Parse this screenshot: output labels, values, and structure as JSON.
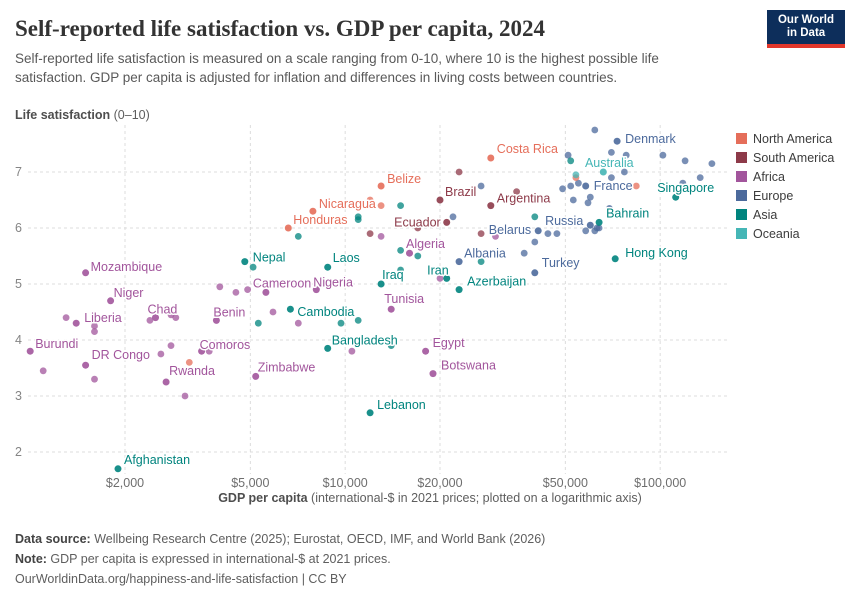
{
  "header": {
    "title": "Self-reported life satisfaction vs. GDP per capita, 2024",
    "subtitle": "Self-reported life satisfaction is measured on a scale ranging from 0-10, where 10 is the highest possible life satisfaction. GDP per capita is adjusted for inflation and differences in living costs between countries.",
    "logo": {
      "line1": "Our World",
      "line2": "in Data",
      "bg": "#0d2e5b",
      "accent": "#e2372b"
    }
  },
  "chart_data": {
    "type": "scatter",
    "title": "Self-reported life satisfaction vs. GDP per capita, 2024",
    "x_scale": "log",
    "y_axis": {
      "label_main": "Life satisfaction",
      "label_range": "(0–10)",
      "ticks": [
        2,
        3,
        4,
        5,
        6,
        7
      ],
      "min": 1.5,
      "max": 7.9
    },
    "x_axis": {
      "label_bold": "GDP per capita",
      "label_rest": " (international-$ in 2021 prices; plotted on a logarithmic axis)",
      "ticks": [
        {
          "value": 2000,
          "label": "$2,000"
        },
        {
          "value": 5000,
          "label": "$5,000"
        },
        {
          "value": 10000,
          "label": "$10,000"
        },
        {
          "value": 20000,
          "label": "$20,000"
        },
        {
          "value": 50000,
          "label": "$50,000"
        },
        {
          "value": 100000,
          "label": "$100,000"
        }
      ]
    },
    "legend": [
      {
        "label": "North America",
        "code": "NA",
        "color": "#e56e5a"
      },
      {
        "label": "South America",
        "code": "SA",
        "color": "#8d3a49"
      },
      {
        "label": "Africa",
        "code": "AF",
        "color": "#a2559c"
      },
      {
        "label": "Europe",
        "code": "EU",
        "color": "#4c6a9c"
      },
      {
        "label": "Asia",
        "code": "AS",
        "color": "#00847e"
      },
      {
        "label": "Oceania",
        "code": "OC",
        "color": "#45b6b6"
      }
    ],
    "continent_colors": {
      "NA": "#e56e5a",
      "SA": "#8d3a49",
      "AF": "#a2559c",
      "EU": "#4c6a9c",
      "AS": "#00847e",
      "OC": "#45b6b6"
    },
    "points": [
      {
        "name": "Denmark",
        "c": "EU",
        "gdp": 73000,
        "ls": 7.55,
        "lp": [
          8,
          -2,
          "start"
        ]
      },
      {
        "name": "Australia",
        "c": "OC",
        "gdp": 66000,
        "ls": 7.0,
        "lp": [
          6,
          -9,
          "middle"
        ]
      },
      {
        "name": "France",
        "c": "EU",
        "gdp": 58000,
        "ls": 6.75,
        "lp": [
          8,
          0,
          "start"
        ]
      },
      {
        "name": "Singapore",
        "c": "AS",
        "gdp": 112000,
        "ls": 6.55,
        "lp": [
          10,
          -9,
          "middle"
        ]
      },
      {
        "name": "Bahrain",
        "c": "AS",
        "gdp": 64000,
        "ls": 6.1,
        "lp": [
          7,
          -9,
          "start"
        ]
      },
      {
        "name": "Russia",
        "c": "EU",
        "gdp": 60000,
        "ls": 6.05,
        "lp": [
          -7,
          -4,
          "end"
        ]
      },
      {
        "name": "Belarus",
        "c": "EU",
        "gdp": 41000,
        "ls": 5.95,
        "lp": [
          -7,
          -1,
          "end"
        ]
      },
      {
        "name": "Hong Kong",
        "c": "AS",
        "gdp": 72000,
        "ls": 5.45,
        "lp": [
          10,
          -6,
          "start"
        ]
      },
      {
        "name": "Turkey",
        "c": "EU",
        "gdp": 40000,
        "ls": 5.2,
        "lp": [
          7,
          -10,
          "start"
        ]
      },
      {
        "name": "Albania",
        "c": "EU",
        "gdp": 23000,
        "ls": 5.4,
        "lp": [
          5,
          -8,
          "start"
        ]
      },
      {
        "name": "Azerbaijan",
        "c": "AS",
        "gdp": 23000,
        "ls": 4.9,
        "lp": [
          8,
          -8,
          "start"
        ]
      },
      {
        "name": "Iran",
        "c": "AS",
        "gdp": 21000,
        "ls": 5.1,
        "lp": [
          2,
          -8,
          "end"
        ]
      },
      {
        "name": "Iraq",
        "c": "AS",
        "gdp": 13000,
        "ls": 5.0,
        "lp": [
          1,
          -9,
          "start"
        ]
      },
      {
        "name": "Tunisia",
        "c": "AF",
        "gdp": 14000,
        "ls": 4.55,
        "lp": [
          13,
          -10,
          "middle"
        ]
      },
      {
        "name": "Algeria",
        "c": "AF",
        "gdp": 16000,
        "ls": 5.55,
        "lp": [
          16,
          -9,
          "middle"
        ]
      },
      {
        "name": "Ecuador",
        "c": "SA",
        "gdp": 21000,
        "ls": 6.1,
        "lp": [
          -6,
          0,
          "end"
        ]
      },
      {
        "name": "Brazil",
        "c": "SA",
        "gdp": 20000,
        "ls": 6.5,
        "lp": [
          5,
          -8,
          "start"
        ]
      },
      {
        "name": "Argentina",
        "c": "SA",
        "gdp": 29000,
        "ls": 6.4,
        "lp": [
          6,
          -7,
          "start"
        ]
      },
      {
        "name": "Costa Rica",
        "c": "NA",
        "gdp": 29000,
        "ls": 7.25,
        "lp": [
          6,
          -9,
          "start"
        ]
      },
      {
        "name": "Belize",
        "c": "NA",
        "gdp": 13000,
        "ls": 6.75,
        "lp": [
          6,
          -7,
          "start"
        ]
      },
      {
        "name": "Nicaragua",
        "c": "NA",
        "gdp": 7900,
        "ls": 6.3,
        "lp": [
          6,
          -7,
          "start"
        ]
      },
      {
        "name": "Honduras",
        "c": "NA",
        "gdp": 6600,
        "ls": 6.0,
        "lp": [
          5,
          -8,
          "start"
        ]
      },
      {
        "name": "Nepal",
        "c": "AS",
        "gdp": 4800,
        "ls": 5.4,
        "lp": [
          8,
          -4,
          "start"
        ]
      },
      {
        "name": "Laos",
        "c": "AS",
        "gdp": 8800,
        "ls": 5.3,
        "lp": [
          5,
          -9,
          "start"
        ]
      },
      {
        "name": "Cameroon",
        "c": "AF",
        "gdp": 5600,
        "ls": 4.85,
        "lp": [
          -13,
          -9,
          "start"
        ]
      },
      {
        "name": "Nigeria",
        "c": "AF",
        "gdp": 8100,
        "ls": 4.9,
        "lp": [
          -3,
          -7,
          "start"
        ]
      },
      {
        "name": "Cambodia",
        "c": "AS",
        "gdp": 6700,
        "ls": 4.55,
        "lp": [
          7,
          3,
          "start"
        ]
      },
      {
        "name": "Bangladesh",
        "c": "AS",
        "gdp": 8800,
        "ls": 3.85,
        "lp": [
          4,
          -8,
          "start"
        ]
      },
      {
        "name": "Egypt",
        "c": "AF",
        "gdp": 18000,
        "ls": 3.8,
        "lp": [
          7,
          -8,
          "start"
        ]
      },
      {
        "name": "Botswana",
        "c": "AF",
        "gdp": 19000,
        "ls": 3.4,
        "lp": [
          8,
          -8,
          "start"
        ]
      },
      {
        "name": "Zimbabwe",
        "c": "AF",
        "gdp": 5200,
        "ls": 3.35,
        "lp": [
          2,
          -9,
          "start"
        ]
      },
      {
        "name": "Lebanon",
        "c": "AS",
        "gdp": 12000,
        "ls": 2.7,
        "lp": [
          7,
          -8,
          "start"
        ]
      },
      {
        "name": "Afghanistan",
        "c": "AS",
        "gdp": 1900,
        "ls": 1.7,
        "lp": [
          6,
          -9,
          "start"
        ]
      },
      {
        "name": "Burundi",
        "c": "AF",
        "gdp": 1000,
        "ls": 3.8,
        "lp": [
          5,
          -7,
          "start"
        ]
      },
      {
        "name": "DR Congo",
        "c": "AF",
        "gdp": 1500,
        "ls": 3.55,
        "lp": [
          6,
          -10,
          "start"
        ]
      },
      {
        "name": "Rwanda",
        "c": "AF",
        "gdp": 2700,
        "ls": 3.25,
        "lp": [
          3,
          -11,
          "start"
        ]
      },
      {
        "name": "Mozambique",
        "c": "AF",
        "gdp": 1500,
        "ls": 5.2,
        "lp": [
          5,
          -6,
          "start"
        ]
      },
      {
        "name": "Niger",
        "c": "AF",
        "gdp": 1800,
        "ls": 4.7,
        "lp": [
          3,
          -8,
          "start"
        ]
      },
      {
        "name": "Liberia",
        "c": "AF",
        "gdp": 1400,
        "ls": 4.3,
        "lp": [
          8,
          -5,
          "start"
        ]
      },
      {
        "name": "Chad",
        "c": "AF",
        "gdp": 2500,
        "ls": 4.4,
        "lp": [
          -8,
          -8,
          "start"
        ]
      },
      {
        "name": "Benin",
        "c": "AF",
        "gdp": 3900,
        "ls": 4.35,
        "lp": [
          -3,
          -8,
          "start"
        ]
      },
      {
        "name": "Comoros",
        "c": "AF",
        "gdp": 3500,
        "ls": 3.8,
        "lp": [
          -2,
          -6,
          "start"
        ]
      }
    ],
    "unlabeled_points": [
      {
        "c": "EU",
        "gdp": 62000,
        "ls": 7.75
      },
      {
        "c": "EU",
        "gdp": 70000,
        "ls": 7.35
      },
      {
        "c": "EU",
        "gdp": 78000,
        "ls": 7.3
      },
      {
        "c": "EU",
        "gdp": 102000,
        "ls": 7.3
      },
      {
        "c": "EU",
        "gdp": 120000,
        "ls": 7.2
      },
      {
        "c": "EU",
        "gdp": 146000,
        "ls": 7.15
      },
      {
        "c": "EU",
        "gdp": 70000,
        "ls": 6.9
      },
      {
        "c": "EU",
        "gdp": 77000,
        "ls": 7.0
      },
      {
        "c": "EU",
        "gdp": 51000,
        "ls": 7.3
      },
      {
        "c": "EU",
        "gdp": 55000,
        "ls": 6.8
      },
      {
        "c": "EU",
        "gdp": 49000,
        "ls": 6.7
      },
      {
        "c": "EU",
        "gdp": 52000,
        "ls": 6.75
      },
      {
        "c": "EU",
        "gdp": 60000,
        "ls": 6.55
      },
      {
        "c": "EU",
        "gdp": 59000,
        "ls": 6.45
      },
      {
        "c": "EU",
        "gdp": 53000,
        "ls": 6.5
      },
      {
        "c": "EU",
        "gdp": 69000,
        "ls": 6.35
      },
      {
        "c": "EU",
        "gdp": 64000,
        "ls": 6.0
      },
      {
        "c": "EU",
        "gdp": 62000,
        "ls": 5.95
      },
      {
        "c": "EU",
        "gdp": 63000,
        "ls": 6.0
      },
      {
        "c": "EU",
        "gdp": 118000,
        "ls": 6.8
      },
      {
        "c": "EU",
        "gdp": 134000,
        "ls": 6.9
      },
      {
        "c": "EU",
        "gdp": 44000,
        "ls": 5.9
      },
      {
        "c": "EU",
        "gdp": 47000,
        "ls": 5.9
      },
      {
        "c": "EU",
        "gdp": 58000,
        "ls": 5.95
      },
      {
        "c": "EU",
        "gdp": 37000,
        "ls": 5.55
      },
      {
        "c": "EU",
        "gdp": 40000,
        "ls": 5.75
      },
      {
        "c": "EU",
        "gdp": 27000,
        "ls": 6.75
      },
      {
        "c": "EU",
        "gdp": 22000,
        "ls": 6.2
      },
      {
        "c": "NA",
        "gdp": 84000,
        "ls": 6.75
      },
      {
        "c": "NA",
        "gdp": 54000,
        "ls": 6.9
      },
      {
        "c": "NA",
        "gdp": 12000,
        "ls": 6.5
      },
      {
        "c": "NA",
        "gdp": 13000,
        "ls": 6.4
      },
      {
        "c": "NA",
        "gdp": 3200,
        "ls": 3.6
      },
      {
        "c": "SA",
        "gdp": 23000,
        "ls": 7.0
      },
      {
        "c": "SA",
        "gdp": 35000,
        "ls": 6.65
      },
      {
        "c": "SA",
        "gdp": 17000,
        "ls": 6.0
      },
      {
        "c": "SA",
        "gdp": 12000,
        "ls": 5.9
      },
      {
        "c": "SA",
        "gdp": 27000,
        "ls": 5.9
      },
      {
        "c": "AS",
        "gdp": 52000,
        "ls": 7.2
      },
      {
        "c": "AS",
        "gdp": 40000,
        "ls": 6.2
      },
      {
        "c": "AS",
        "gdp": 15000,
        "ls": 6.4
      },
      {
        "c": "AS",
        "gdp": 11000,
        "ls": 6.2
      },
      {
        "c": "AS",
        "gdp": 11000,
        "ls": 6.15
      },
      {
        "c": "AS",
        "gdp": 7100,
        "ls": 5.85
      },
      {
        "c": "AS",
        "gdp": 15000,
        "ls": 5.6
      },
      {
        "c": "AS",
        "gdp": 17000,
        "ls": 5.5
      },
      {
        "c": "AS",
        "gdp": 15000,
        "ls": 5.25
      },
      {
        "c": "AS",
        "gdp": 11000,
        "ls": 4.35
      },
      {
        "c": "AS",
        "gdp": 5100,
        "ls": 5.3
      },
      {
        "c": "AS",
        "gdp": 14000,
        "ls": 3.9
      },
      {
        "c": "AS",
        "gdp": 9700,
        "ls": 4.3
      },
      {
        "c": "AS",
        "gdp": 5300,
        "ls": 4.3
      },
      {
        "c": "AS",
        "gdp": 27000,
        "ls": 5.4
      },
      {
        "c": "AF",
        "gdp": 1100,
        "ls": 3.45
      },
      {
        "c": "AF",
        "gdp": 1300,
        "ls": 4.4
      },
      {
        "c": "AF",
        "gdp": 1600,
        "ls": 4.25
      },
      {
        "c": "AF",
        "gdp": 1600,
        "ls": 4.15
      },
      {
        "c": "AF",
        "gdp": 2400,
        "ls": 4.35
      },
      {
        "c": "AF",
        "gdp": 2800,
        "ls": 4.45
      },
      {
        "c": "AF",
        "gdp": 2900,
        "ls": 4.4
      },
      {
        "c": "AF",
        "gdp": 2600,
        "ls": 3.75
      },
      {
        "c": "AF",
        "gdp": 2800,
        "ls": 3.9
      },
      {
        "c": "AF",
        "gdp": 3700,
        "ls": 3.8
      },
      {
        "c": "AF",
        "gdp": 1600,
        "ls": 3.3
      },
      {
        "c": "AF",
        "gdp": 3100,
        "ls": 3.0
      },
      {
        "c": "AF",
        "gdp": 4000,
        "ls": 4.95
      },
      {
        "c": "AF",
        "gdp": 4500,
        "ls": 4.85
      },
      {
        "c": "AF",
        "gdp": 4900,
        "ls": 4.9
      },
      {
        "c": "AF",
        "gdp": 5900,
        "ls": 4.5
      },
      {
        "c": "AF",
        "gdp": 7100,
        "ls": 4.3
      },
      {
        "c": "AF",
        "gdp": 13000,
        "ls": 5.85
      },
      {
        "c": "AF",
        "gdp": 30000,
        "ls": 5.85
      },
      {
        "c": "AF",
        "gdp": 10500,
        "ls": 3.8
      },
      {
        "c": "AF",
        "gdp": 20000,
        "ls": 5.1
      },
      {
        "c": "OC",
        "gdp": 54000,
        "ls": 6.95
      }
    ]
  },
  "footer": {
    "source_bold": "Data source:",
    "source": " Wellbeing Research Centre (2025); Eurostat, OECD, IMF, and World Bank (2026)",
    "note_bold": "Note:",
    "note": " GDP per capita is expressed in international-$ at 2021 prices.",
    "link": "OurWorldinData.org/happiness-and-life-satisfaction | CC BY"
  }
}
